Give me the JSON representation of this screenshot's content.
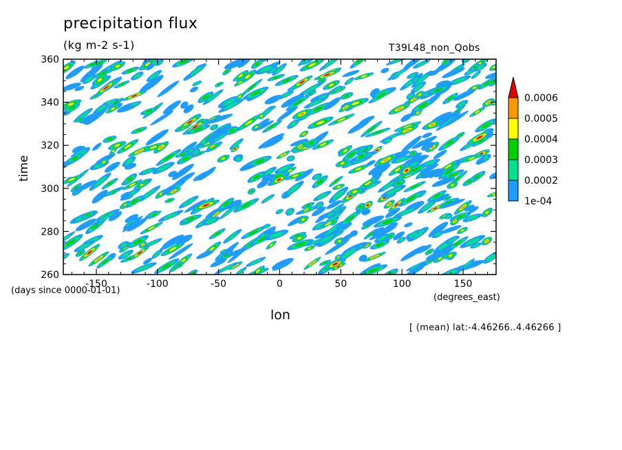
{
  "chart_data": {
    "type": "heatmap",
    "title": "precipitation flux",
    "units": "(kg m-2 s-1)",
    "run_label": "T39L48_non_Qobs",
    "xlabel": "lon",
    "x_units": "(degrees_east)",
    "ylabel": "time",
    "y_units": "(days since 0000-01-01)",
    "annotation": "[ (mean) lat:-4.46266..4.46266 ]",
    "xlim": [
      -177,
      177
    ],
    "ylim": [
      260,
      360
    ],
    "x_ticks": [
      -150,
      -100,
      -50,
      0,
      50,
      100,
      150
    ],
    "y_ticks": [
      260,
      280,
      300,
      320,
      340,
      360
    ],
    "colorbar": {
      "levels": [
        "1e-04",
        "0.0002",
        "0.0003",
        "0.0004",
        "0.0005",
        "0.0006"
      ],
      "colors": [
        "#1e9cff",
        "#00e08f",
        "#00d000",
        "#ffff00",
        "#ff9900",
        "#e00000"
      ]
    }
  }
}
